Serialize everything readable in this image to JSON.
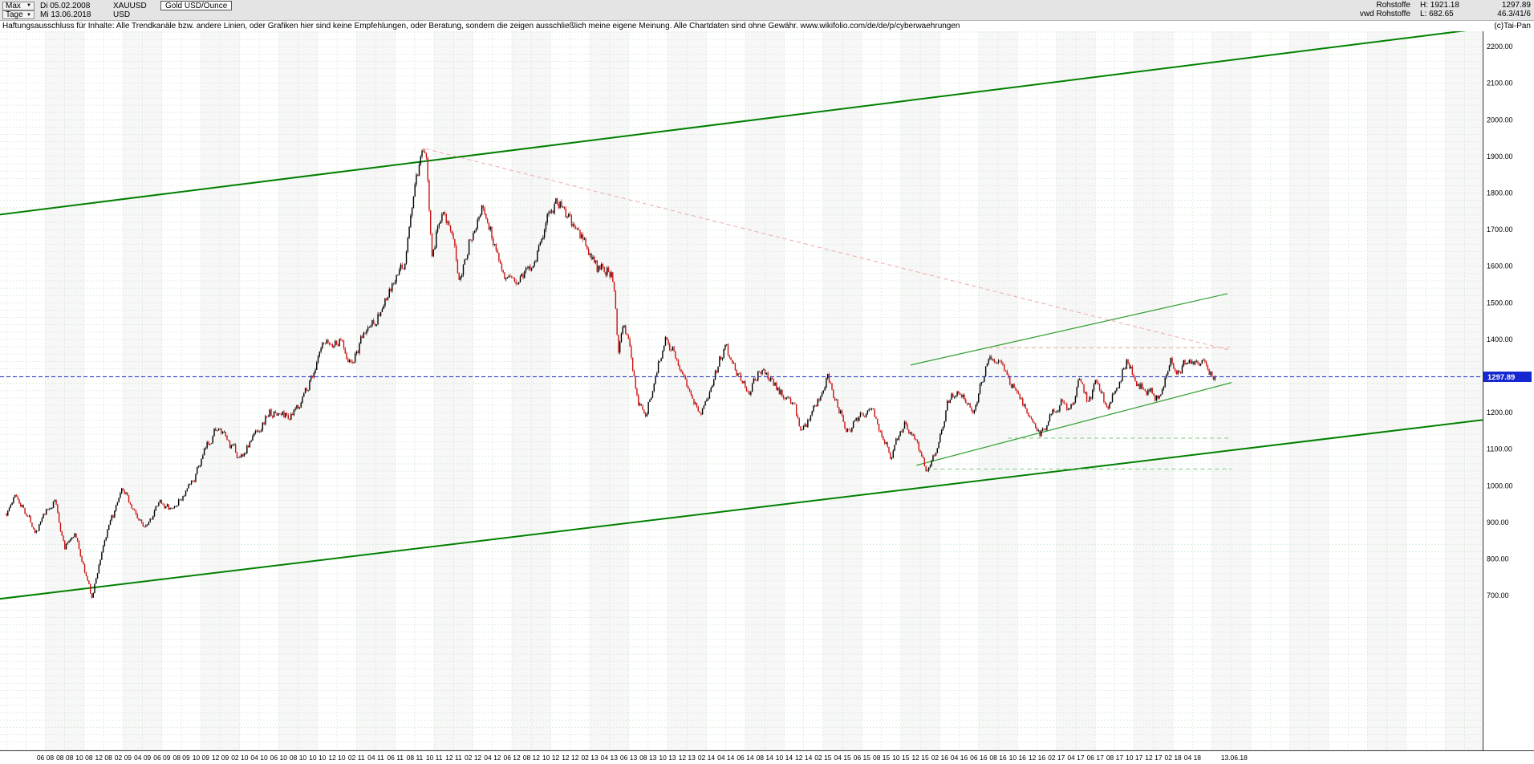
{
  "header": {
    "range_selector": "Max",
    "start_date": "Di 05.02.2008",
    "symbol": "XAUUSD",
    "instrument": "Gold USD/Ounce",
    "period_selector": "Tage",
    "end_date": "Mi 13.06.2018",
    "currency": "USD",
    "category": "Rohstoffe",
    "high": "H: 1921.18",
    "last": "1297.89",
    "source": "vwd Rohstoffe",
    "low": "L: 682.65",
    "stats": "46.3/41/6",
    "copyright": "(c)Tai-Pan"
  },
  "disclaimer": "Haftungsausschluss für Inhalte: Alle Trendkanäle bzw. andere Linien, oder Grafiken hier sind keine Empfehlungen, oder Beratung, sondern die zeigen ausschließlich meine eigene Meinung. Alle Chartdaten sind ohne Gewähr.  www.wikifolio.com/de/de/p/cyberwaehrungen",
  "chart_data": {
    "type": "candlestick",
    "title": "Gold USD/Ounce",
    "symbol": "XAUUSD",
    "period": "Tage",
    "x_start": "05.02.2008",
    "x_end": "13.06.2018",
    "high": 1921.18,
    "low": 682.65,
    "current_price": 1297.89,
    "ylim": [
      277,
      2242
    ],
    "x_total_months": 152.5,
    "data_months": 124.3,
    "price_axis": {
      "label_min": 700,
      "label_max": 2200,
      "step": 100
    },
    "x_labels": [
      "06 08",
      "08 08",
      "10 08",
      "12 08",
      "02 09",
      "04 09",
      "06 09",
      "08 09",
      "10 09",
      "12 09",
      "02 10",
      "04 10",
      "06 10",
      "08 10",
      "10 10",
      "12 10",
      "02 11",
      "04 11",
      "06 11",
      "08 11",
      "10 11",
      "12 11",
      "02 12",
      "04 12",
      "06 12",
      "08 12",
      "10 12",
      "12 12",
      "02 13",
      "04 13",
      "06 13",
      "08 13",
      "10 13",
      "12 13",
      "02 14",
      "04 14",
      "06 14",
      "08 14",
      "10 14",
      "12 14",
      "02 15",
      "04 15",
      "06 15",
      "08 15",
      "10 15",
      "12 15",
      "02 16",
      "04 16",
      "06 16",
      "08 16",
      "10 16",
      "12 16",
      "02 17",
      "04 17",
      "06 17",
      "08 17",
      "10 17",
      "12 17",
      "02 18",
      "04 18"
    ],
    "x_end_label": "13.06.18",
    "anchors": [
      [
        0,
        925
      ],
      [
        1,
        975
      ],
      [
        2,
        930
      ],
      [
        3,
        880
      ],
      [
        5,
        960
      ],
      [
        6,
        830
      ],
      [
        7,
        875
      ],
      [
        8.8,
        692
      ],
      [
        10,
        845
      ],
      [
        12,
        985
      ],
      [
        14,
        890
      ],
      [
        16,
        955
      ],
      [
        17,
        930
      ],
      [
        19,
        1000
      ],
      [
        21.5,
        1160
      ],
      [
        24,
        1075
      ],
      [
        27,
        1200
      ],
      [
        29.5,
        1190
      ],
      [
        30.5,
        1245
      ],
      [
        32.5,
        1370
      ],
      [
        34.5,
        1400
      ],
      [
        35.5,
        1330
      ],
      [
        37,
        1420
      ],
      [
        39,
        1500
      ],
      [
        41,
        1610
      ],
      [
        42,
        1820
      ],
      [
        43.1,
        1912
      ],
      [
        43.8,
        1640
      ],
      [
        45,
        1780
      ],
      [
        46.5,
        1575
      ],
      [
        48.8,
        1775
      ],
      [
        50.5,
        1640
      ],
      [
        51.8,
        1545
      ],
      [
        54,
        1605
      ],
      [
        56.6,
        1790
      ],
      [
        58.5,
        1690
      ],
      [
        59.5,
        1665
      ],
      [
        60.8,
        1585
      ],
      [
        62,
        1600
      ],
      [
        62.6,
        1545
      ],
      [
        62.9,
        1380
      ],
      [
        63.5,
        1455
      ],
      [
        65,
        1235
      ],
      [
        65.8,
        1195
      ],
      [
        67.8,
        1415
      ],
      [
        69.5,
        1320
      ],
      [
        71.5,
        1195
      ],
      [
        73.8,
        1380
      ],
      [
        76.5,
        1250
      ],
      [
        77.5,
        1325
      ],
      [
        81,
        1215
      ],
      [
        81.9,
        1145
      ],
      [
        83,
        1200
      ],
      [
        84.5,
        1295
      ],
      [
        86.5,
        1155
      ],
      [
        88.8,
        1220
      ],
      [
        91,
        1085
      ],
      [
        92.5,
        1180
      ],
      [
        94.6,
        1050
      ],
      [
        96,
        1125
      ],
      [
        96.8,
        1240
      ],
      [
        98,
        1262
      ],
      [
        99.5,
        1212
      ],
      [
        101.2,
        1366
      ],
      [
        102.2,
        1335
      ],
      [
        104,
        1255
      ],
      [
        106.3,
        1128
      ],
      [
        108.5,
        1240
      ],
      [
        109.3,
        1200
      ],
      [
        110.5,
        1288
      ],
      [
        111.3,
        1222
      ],
      [
        112.2,
        1292
      ],
      [
        113.3,
        1208
      ],
      [
        115.3,
        1350
      ],
      [
        116.5,
        1272
      ],
      [
        118.4,
        1242
      ],
      [
        119.8,
        1358
      ],
      [
        120.6,
        1310
      ],
      [
        121.5,
        1352
      ],
      [
        123,
        1345
      ],
      [
        124,
        1292
      ],
      [
        124.3,
        1297.89
      ]
    ],
    "trend_lines": [
      {
        "name": "main-channel-upper",
        "t1": -1,
        "p1": 1740,
        "t2": 152.5,
        "p2": 2252,
        "color": "#008000",
        "width": 2,
        "dash": ""
      },
      {
        "name": "main-channel-lower",
        "t1": -1,
        "p1": 690,
        "t2": 152.5,
        "p2": 1182,
        "color": "#008000",
        "width": 2,
        "dash": ""
      },
      {
        "name": "rising-resistance-2016",
        "t1": 93,
        "p1": 1330,
        "t2": 125.6,
        "p2": 1525,
        "color": "#2f9e2f",
        "width": 1.2,
        "dash": ""
      },
      {
        "name": "rising-support-2016",
        "t1": 93.6,
        "p1": 1056,
        "t2": 126,
        "p2": 1282,
        "color": "#2f9e2f",
        "width": 1.2,
        "dash": ""
      },
      {
        "name": "downtrend-from-2011-high",
        "t1": 43.1,
        "p1": 1921,
        "t2": 125.6,
        "p2": 1372,
        "color": "#f0a8a8",
        "width": 1,
        "dash": "5 4"
      },
      {
        "name": "resistance-1377-horizontal",
        "t1": 101,
        "p1": 1377,
        "t2": 125.8,
        "p2": 1377,
        "color": "#f0a8a8",
        "width": 1,
        "dash": "5 4"
      },
      {
        "name": "support-1130-horizontal",
        "t1": 103,
        "p1": 1130,
        "t2": 126,
        "p2": 1130,
        "color": "#7fc87f",
        "width": 1,
        "dash": "5 4"
      },
      {
        "name": "support-1046-horizontal",
        "t1": 94.6,
        "p1": 1046,
        "t2": 126,
        "p2": 1046,
        "color": "#7fc87f",
        "width": 1,
        "dash": "5 4"
      }
    ],
    "colors": {
      "up_candle": "#000000",
      "down_candle": "#cc1111",
      "grid": "#cde6cd",
      "band": "#f7f7f7",
      "current_price_line": "#2030d0",
      "current_price_tag_bg": "#1527cf",
      "current_price_tag_text": "#ffffff"
    },
    "grid": {
      "horizontal_step": 20,
      "vertical_step_months": 2,
      "style": "dashed-green"
    },
    "legend_position": "none"
  }
}
